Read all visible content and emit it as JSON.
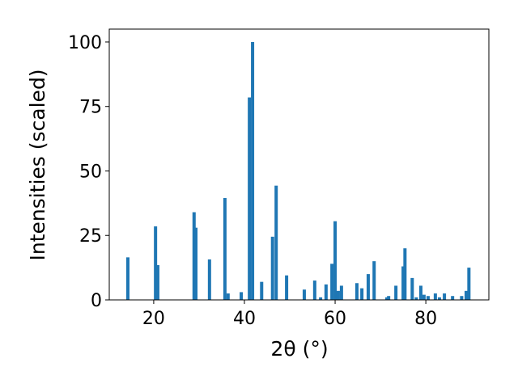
{
  "chart_data": {
    "type": "bar",
    "x_label": "2θ (°)",
    "y_label": "Intensities (scaled)",
    "x": [
      14.3,
      20.4,
      20.9,
      28.9,
      29.3,
      32.3,
      35.7,
      36.4,
      39.3,
      41.1,
      41.8,
      43.8,
      46.2,
      47.0,
      49.3,
      53.2,
      55.5,
      56.8,
      58.0,
      59.3,
      60.0,
      60.7,
      61.4,
      64.8,
      65.9,
      67.3,
      68.6,
      71.4,
      71.8,
      73.4,
      75.0,
      75.4,
      77.0,
      77.9,
      78.9,
      79.6,
      80.5,
      82.1,
      83.0,
      84.1,
      85.9,
      87.9,
      88.9,
      89.5
    ],
    "values": [
      16.5,
      28.5,
      13.5,
      34,
      28,
      15.7,
      39.5,
      2.5,
      3,
      78.5,
      100,
      7,
      24.5,
      44.3,
      9.5,
      4,
      7.5,
      1,
      6,
      14,
      30.5,
      3.5,
      5.5,
      6.5,
      4.5,
      10,
      15,
      1,
      1.5,
      5.5,
      13,
      20,
      8.5,
      1,
      5.5,
      2,
      1.5,
      2.5,
      1,
      2.5,
      1.5,
      1.5,
      3.5,
      12.5
    ],
    "color": "#1f77b4",
    "xlim": [
      10.2,
      93.9
    ],
    "xticks": [
      20,
      40,
      60,
      80
    ],
    "ylim": [
      0,
      105
    ],
    "yticks": [
      0,
      25,
      50,
      75,
      100
    ]
  }
}
